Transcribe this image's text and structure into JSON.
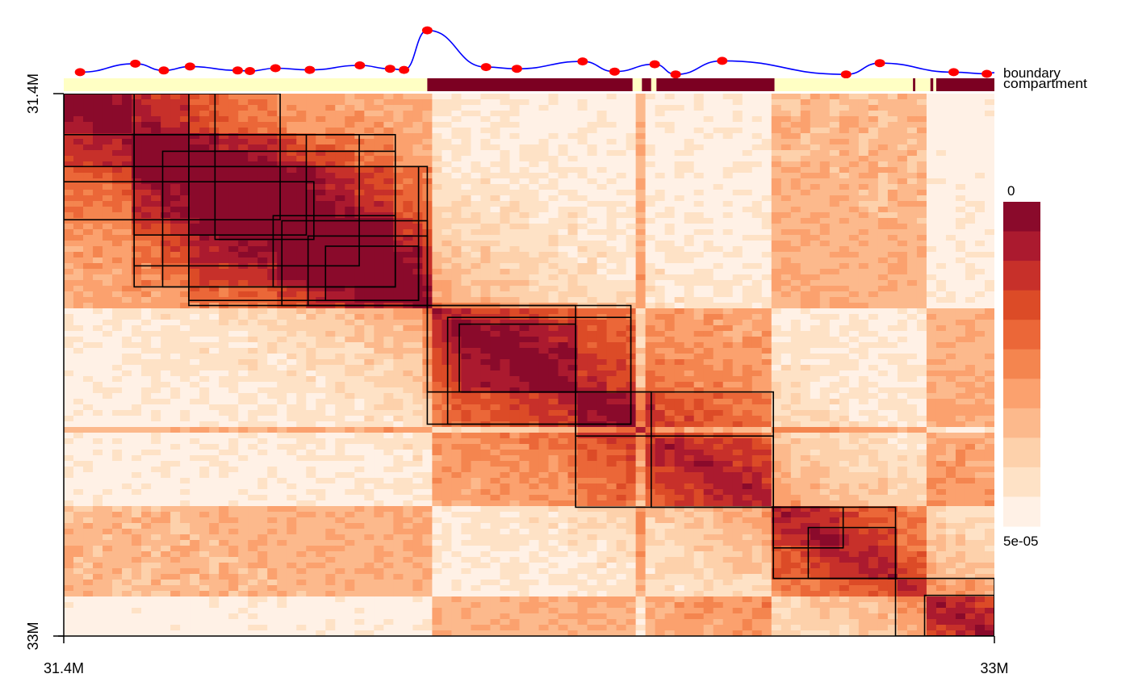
{
  "chart_data": {
    "type": "heatmap",
    "title": "",
    "xlabel": "",
    "ylabel": "",
    "x_tick_labels": [
      "31.4M",
      "33M"
    ],
    "y_tick_labels": [
      "31.4M",
      "33M"
    ],
    "x_range_mb": [
      31.4,
      33.0
    ],
    "y_range_mb": [
      31.4,
      33.0
    ],
    "color_scale": {
      "top_label": "0",
      "bottom_label": "5e-05",
      "colors": [
        "#fff1e6",
        "#fee2c6",
        "#fdd1ab",
        "#fcb98c",
        "#fba16e",
        "#f4854f",
        "#eb6738",
        "#dc4b27",
        "#c7302a",
        "#ab1a2f",
        "#8a0a2b"
      ]
    },
    "tracks": {
      "boundary": {
        "label": "boundary",
        "line_color": "#0000ff",
        "point_color": "#ff0000",
        "x_mb": [
          31.428,
          31.523,
          31.572,
          31.617,
          31.699,
          31.72,
          31.764,
          31.823,
          31.909,
          31.961,
          31.985,
          32.025,
          32.126,
          32.179,
          32.292,
          32.347,
          32.416,
          32.452,
          32.532,
          32.745,
          32.803,
          32.93,
          32.987,
          33.0
        ],
        "values": [
          0.08,
          0.23,
          0.11,
          0.18,
          0.11,
          0.1,
          0.15,
          0.12,
          0.2,
          0.14,
          0.12,
          0.82,
          0.17,
          0.14,
          0.27,
          0.09,
          0.22,
          0.04,
          0.28,
          0.04,
          0.24,
          0.08,
          0.05,
          0.07
        ]
      },
      "compartment": {
        "label": "compartment",
        "A_color": "#ffffc4",
        "B_color": "#7c0022",
        "segments": [
          {
            "start": 31.4,
            "end": 32.025,
            "state": "A"
          },
          {
            "start": 32.025,
            "end": 32.378,
            "state": "B"
          },
          {
            "start": 32.378,
            "end": 32.394,
            "state": "A"
          },
          {
            "start": 32.394,
            "end": 32.41,
            "state": "B"
          },
          {
            "start": 32.41,
            "end": 32.419,
            "state": "A"
          },
          {
            "start": 32.419,
            "end": 32.622,
            "state": "B"
          },
          {
            "start": 32.622,
            "end": 32.86,
            "state": "A"
          },
          {
            "start": 32.86,
            "end": 32.864,
            "state": "B"
          },
          {
            "start": 32.864,
            "end": 32.89,
            "state": "A"
          },
          {
            "start": 32.89,
            "end": 32.895,
            "state": "B"
          },
          {
            "start": 32.895,
            "end": 32.9,
            "state": "A"
          },
          {
            "start": 32.9,
            "end": 33.0,
            "state": "B"
          }
        ]
      }
    },
    "domains_mb": [
      [
        31.4,
        31.521
      ],
      [
        31.4,
        31.615
      ],
      [
        31.4,
        31.66
      ],
      [
        31.4,
        31.772
      ],
      [
        31.521,
        31.817
      ],
      [
        31.521,
        31.908
      ],
      [
        31.521,
        31.97
      ],
      [
        31.57,
        31.97
      ],
      [
        31.615,
        32.01
      ],
      [
        31.615,
        32.025
      ],
      [
        31.66,
        31.83
      ],
      [
        31.76,
        31.97
      ],
      [
        31.775,
        32.025
      ],
      [
        31.82,
        32.025
      ],
      [
        31.85,
        32.01
      ],
      [
        32.025,
        32.28
      ],
      [
        32.025,
        32.375
      ],
      [
        32.06,
        32.375
      ],
      [
        32.08,
        32.28
      ],
      [
        32.28,
        32.41
      ],
      [
        32.28,
        32.62
      ],
      [
        32.41,
        32.62
      ],
      [
        32.62,
        32.74
      ],
      [
        32.62,
        32.83
      ],
      [
        32.68,
        32.83
      ],
      [
        32.83,
        33.0
      ],
      [
        32.88,
        33.0
      ]
    ]
  }
}
